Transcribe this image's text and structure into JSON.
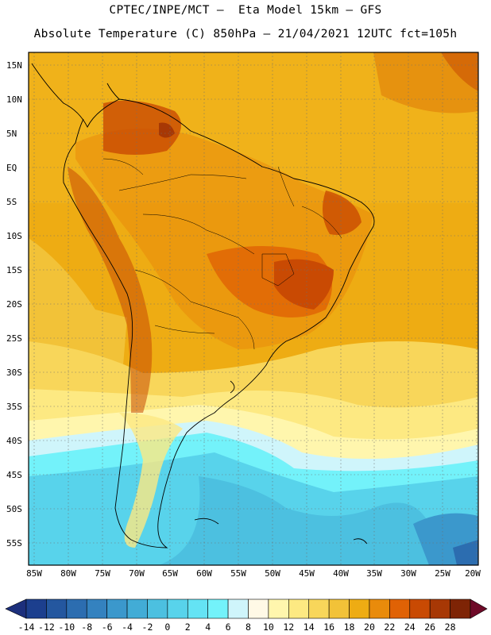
{
  "header": {
    "line1": "CPTEC/INPE/MCT –  Eta Model 15km – GFS",
    "line2": "Absolute Temperature (C) 850hPa – 21/04/2021 12UTC fct=105h"
  },
  "map": {
    "lat_ticks": [
      "15N",
      "10N",
      "5N",
      "EQ",
      "5S",
      "10S",
      "15S",
      "20S",
      "25S",
      "30S",
      "35S",
      "40S",
      "45S",
      "50S",
      "55S"
    ],
    "lon_ticks": [
      "85W",
      "80W",
      "75W",
      "70W",
      "65W",
      "60W",
      "55W",
      "50W",
      "45W",
      "40W",
      "35W",
      "30W",
      "25W",
      "20W"
    ]
  },
  "colorbar": {
    "labels": [
      "-14",
      "-12",
      "-10",
      "-8",
      "-6",
      "-4",
      "-2",
      "0",
      "2",
      "4",
      "6",
      "8",
      "10",
      "12",
      "14",
      "16",
      "18",
      "20",
      "22",
      "24",
      "26",
      "28"
    ],
    "colors": [
      "#1c3f8e",
      "#24579f",
      "#2c6db0",
      "#3482bf",
      "#3b98cc",
      "#42acd6",
      "#4cc0e0",
      "#58d3eb",
      "#64e3f4",
      "#73f2fa",
      "#cff5fb",
      "#fff9e6",
      "#fff6ad",
      "#fde982",
      "#f8d65a",
      "#f2c238",
      "#eeac13",
      "#e98b0b",
      "#e06205",
      "#c94a03",
      "#a73805",
      "#7e2405"
    ],
    "left_arrow_color": "#1c2f7c",
    "right_arrow_color": "#6e0a28"
  }
}
